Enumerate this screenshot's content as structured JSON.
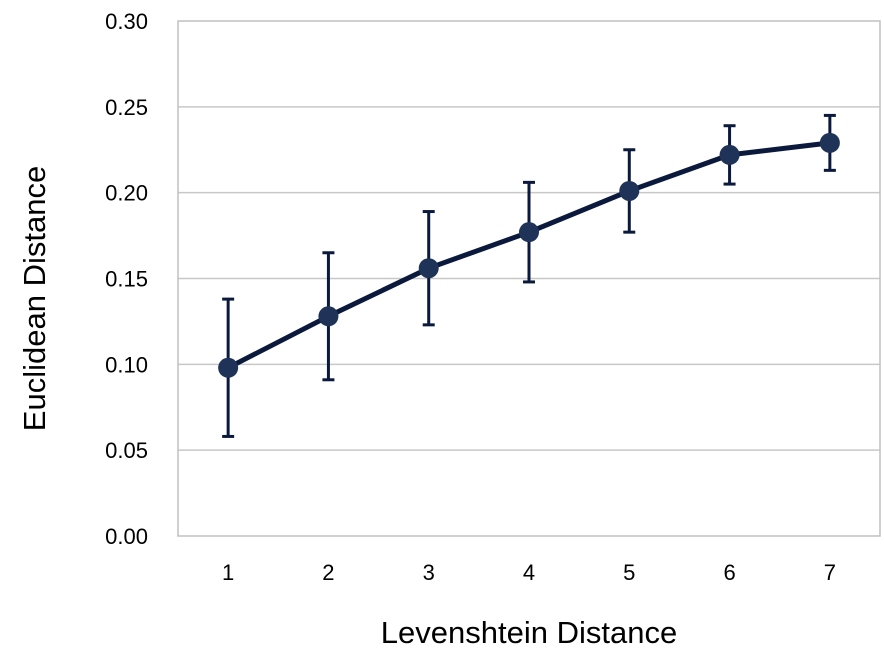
{
  "chart_data": {
    "type": "line",
    "title": "",
    "xlabel": "Levenshtein Distance",
    "ylabel": "Euclidean Distance",
    "categories": [
      "1",
      "2",
      "3",
      "4",
      "5",
      "6",
      "7"
    ],
    "x": [
      1,
      2,
      3,
      4,
      5,
      6,
      7
    ],
    "series": [
      {
        "values": [
          0.098,
          0.128,
          0.156,
          0.177,
          0.201,
          0.222,
          0.229
        ],
        "error_low": [
          0.058,
          0.091,
          0.123,
          0.148,
          0.177,
          0.205,
          0.213
        ],
        "error_high": [
          0.138,
          0.165,
          0.189,
          0.206,
          0.225,
          0.239,
          0.245
        ],
        "color": "#1f3257"
      }
    ],
    "ylim": [
      0,
      0.3
    ],
    "yticks": [
      "0.00",
      "0.05",
      "0.10",
      "0.15",
      "0.20",
      "0.25",
      "0.30"
    ],
    "grid": true,
    "legend": "none",
    "colors": {
      "line": "#0b1a3c",
      "marker": "#1f3257",
      "grid": "#c8c8c8",
      "plot_border": "#c0c0c0"
    }
  }
}
